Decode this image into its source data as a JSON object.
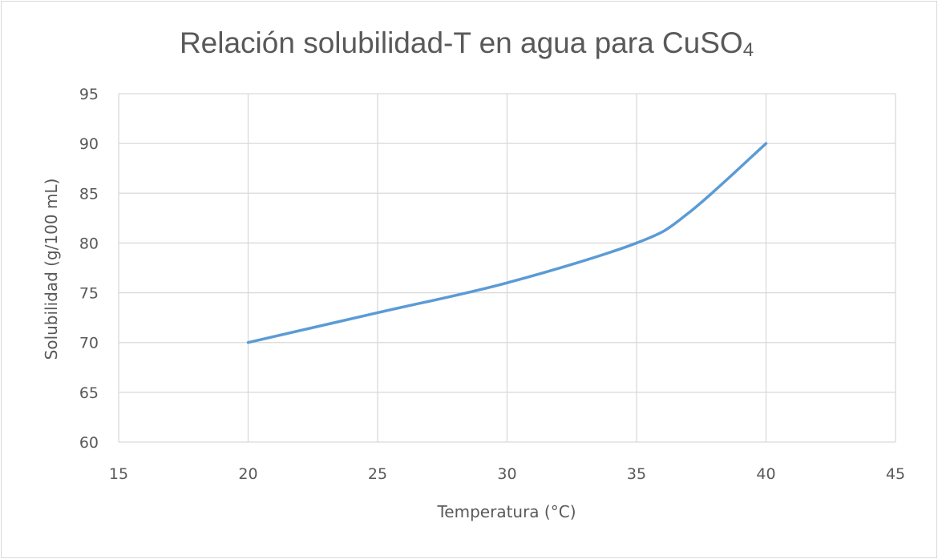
{
  "chart_data": {
    "type": "scatter",
    "title": "Relación solubilidad-T en agua para CuSO",
    "title_subscript": "4",
    "xlabel": "Temperatura (°C)",
    "ylabel": "Solubilidad (g/100 mL)",
    "xlim": [
      15,
      45
    ],
    "ylim": [
      60,
      95
    ],
    "x_ticks": [
      "15",
      "20",
      "25",
      "30",
      "35",
      "40",
      "45"
    ],
    "y_ticks": [
      "60",
      "65",
      "70",
      "75",
      "80",
      "85",
      "90",
      "95"
    ],
    "grid": true,
    "smooth_line": true,
    "markers": false,
    "series_color": "#5b9bd5",
    "series": [
      {
        "x": [
          20,
          25,
          30,
          35,
          37,
          40
        ],
        "y": [
          70,
          73,
          76,
          80,
          83,
          90
        ]
      }
    ]
  }
}
